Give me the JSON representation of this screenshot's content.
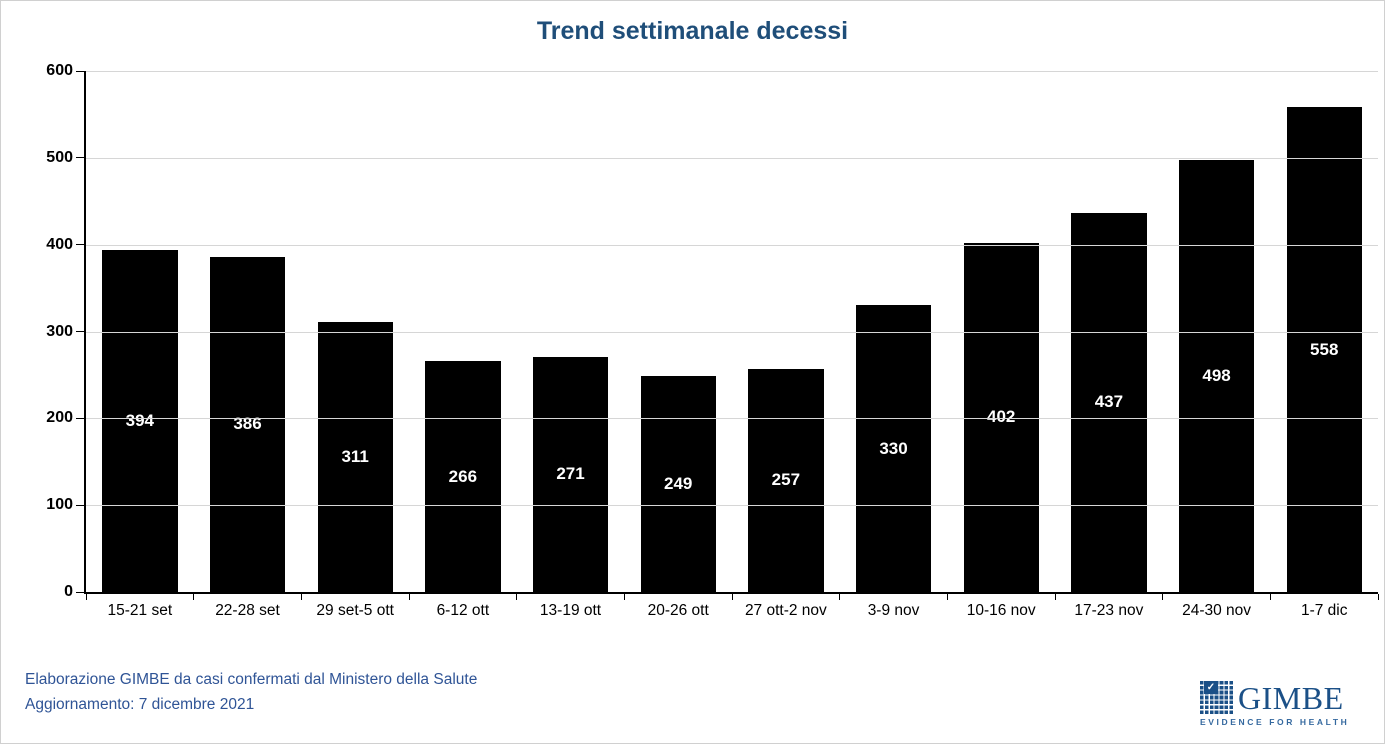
{
  "title": "Trend settimanale decessi",
  "chart_data": {
    "type": "bar",
    "title": "Trend settimanale decessi",
    "categories": [
      "15-21 set",
      "22-28 set",
      "29 set-5 ott",
      "6-12 ott",
      "13-19 ott",
      "20-26 ott",
      "27 ott-2 nov",
      "3-9 nov",
      "10-16 nov",
      "17-23 nov",
      "24-30 nov",
      "1-7 dic"
    ],
    "values": [
      394,
      386,
      311,
      266,
      271,
      249,
      257,
      330,
      402,
      437,
      498,
      558
    ],
    "xlabel": "",
    "ylabel": "",
    "ylim": [
      0,
      600
    ],
    "yticks": [
      0,
      100,
      200,
      300,
      400,
      500,
      600
    ],
    "grid": true,
    "legend_position": "none",
    "bar_color": "#000000",
    "bar_label_color": "#FFFFFF"
  },
  "footer": {
    "source_line": "Elaborazione GIMBE da casi confermati dal Ministero della Salute",
    "update_line": "Aggiornamento: 7 dicembre 2021"
  },
  "logo": {
    "wordmark": "GIMBE",
    "tagline": "EVIDENCE FOR HEALTH",
    "check_glyph": "✓"
  },
  "colors": {
    "title_text": "#1F4E79",
    "footer_text": "#2F5496",
    "logo_blue": "#1B5087",
    "gridline": "#D6D6D6",
    "axis": "#000000",
    "bar": "#000000",
    "bar_label": "#FFFFFF"
  }
}
